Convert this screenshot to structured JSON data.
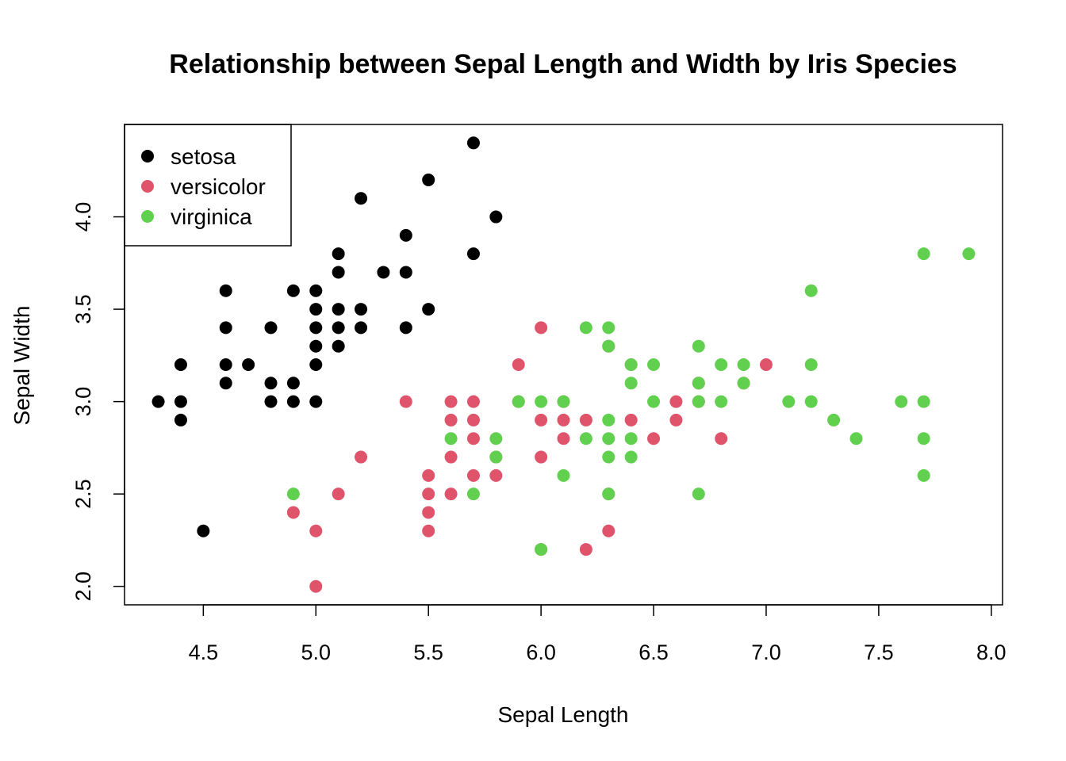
{
  "chart_data": {
    "type": "scatter",
    "title": "Relationship between Sepal Length and Width by Iris Species",
    "xlabel": "Sepal Length",
    "ylabel": "Sepal Width",
    "xlim": [
      4.15,
      8.05
    ],
    "ylim": [
      1.9,
      4.5
    ],
    "x_ticks": [
      4.5,
      5.0,
      5.5,
      6.0,
      6.5,
      7.0,
      7.5,
      8.0
    ],
    "x_tick_labels": [
      "4.5",
      "5.0",
      "5.5",
      "6.0",
      "6.5",
      "7.0",
      "7.5",
      "8.0"
    ],
    "y_ticks": [
      2.0,
      2.5,
      3.0,
      3.5,
      4.0
    ],
    "y_tick_labels": [
      "2.0",
      "2.5",
      "3.0",
      "3.5",
      "4.0"
    ],
    "grid": false,
    "legend_position": "top-left",
    "series": [
      {
        "name": "setosa",
        "color": "#000000",
        "points": [
          [
            4.3,
            3.0
          ],
          [
            4.4,
            3.2
          ],
          [
            4.4,
            3.0
          ],
          [
            4.4,
            2.9
          ],
          [
            4.5,
            2.3
          ],
          [
            4.6,
            3.6
          ],
          [
            4.6,
            3.4
          ],
          [
            4.6,
            3.2
          ],
          [
            4.6,
            3.1
          ],
          [
            4.7,
            3.2
          ],
          [
            4.8,
            3.4
          ],
          [
            4.8,
            3.1
          ],
          [
            4.8,
            3.0
          ],
          [
            4.9,
            3.6
          ],
          [
            4.9,
            3.1
          ],
          [
            4.9,
            3.0
          ],
          [
            5.0,
            3.6
          ],
          [
            5.0,
            3.5
          ],
          [
            5.0,
            3.4
          ],
          [
            5.0,
            3.3
          ],
          [
            5.0,
            3.2
          ],
          [
            5.0,
            3.0
          ],
          [
            5.1,
            3.8
          ],
          [
            5.1,
            3.7
          ],
          [
            5.1,
            3.5
          ],
          [
            5.1,
            3.4
          ],
          [
            5.1,
            3.3
          ],
          [
            5.2,
            4.1
          ],
          [
            5.2,
            3.5
          ],
          [
            5.2,
            3.4
          ],
          [
            5.3,
            3.7
          ],
          [
            5.4,
            3.9
          ],
          [
            5.4,
            3.7
          ],
          [
            5.4,
            3.4
          ],
          [
            5.5,
            4.2
          ],
          [
            5.5,
            3.5
          ],
          [
            5.7,
            4.4
          ],
          [
            5.7,
            3.8
          ],
          [
            5.8,
            4.0
          ]
        ]
      },
      {
        "name": "versicolor",
        "color": "#DF536B",
        "points": [
          [
            4.9,
            2.4
          ],
          [
            5.0,
            2.3
          ],
          [
            5.0,
            2.0
          ],
          [
            5.1,
            2.5
          ],
          [
            5.2,
            2.7
          ],
          [
            5.4,
            3.0
          ],
          [
            5.5,
            2.6
          ],
          [
            5.5,
            2.5
          ],
          [
            5.5,
            2.4
          ],
          [
            5.5,
            2.3
          ],
          [
            5.6,
            3.0
          ],
          [
            5.6,
            2.9
          ],
          [
            5.6,
            2.7
          ],
          [
            5.6,
            2.5
          ],
          [
            5.7,
            3.0
          ],
          [
            5.7,
            2.9
          ],
          [
            5.7,
            2.8
          ],
          [
            5.7,
            2.6
          ],
          [
            5.8,
            2.7
          ],
          [
            5.8,
            2.6
          ],
          [
            5.9,
            3.2
          ],
          [
            5.9,
            3.0
          ],
          [
            6.0,
            3.4
          ],
          [
            6.0,
            2.9
          ],
          [
            6.0,
            2.7
          ],
          [
            6.0,
            2.2
          ],
          [
            6.1,
            3.0
          ],
          [
            6.1,
            2.9
          ],
          [
            6.1,
            2.8
          ],
          [
            6.2,
            2.9
          ],
          [
            6.2,
            2.2
          ],
          [
            6.3,
            2.5
          ],
          [
            6.3,
            2.3
          ],
          [
            6.3,
            3.3
          ],
          [
            6.4,
            2.9
          ],
          [
            6.4,
            3.2
          ],
          [
            6.5,
            2.8
          ],
          [
            6.6,
            3.0
          ],
          [
            6.6,
            2.9
          ],
          [
            6.7,
            3.1
          ],
          [
            6.7,
            3.0
          ],
          [
            6.8,
            2.8
          ],
          [
            6.9,
            3.1
          ],
          [
            7.0,
            3.2
          ]
        ]
      },
      {
        "name": "virginica",
        "color": "#61D04F",
        "points": [
          [
            4.9,
            2.5
          ],
          [
            5.6,
            2.8
          ],
          [
            5.7,
            2.5
          ],
          [
            5.8,
            2.8
          ],
          [
            5.8,
            2.7
          ],
          [
            5.9,
            3.0
          ],
          [
            6.0,
            3.0
          ],
          [
            6.0,
            2.2
          ],
          [
            6.1,
            3.0
          ],
          [
            6.1,
            2.6
          ],
          [
            6.2,
            3.4
          ],
          [
            6.2,
            2.8
          ],
          [
            6.3,
            3.4
          ],
          [
            6.3,
            3.3
          ],
          [
            6.3,
            2.9
          ],
          [
            6.3,
            2.8
          ],
          [
            6.3,
            2.7
          ],
          [
            6.3,
            2.5
          ],
          [
            6.4,
            3.2
          ],
          [
            6.4,
            3.1
          ],
          [
            6.4,
            2.8
          ],
          [
            6.4,
            2.7
          ],
          [
            6.5,
            3.2
          ],
          [
            6.5,
            3.0
          ],
          [
            6.7,
            3.3
          ],
          [
            6.7,
            3.1
          ],
          [
            6.7,
            3.0
          ],
          [
            6.7,
            2.5
          ],
          [
            6.8,
            3.2
          ],
          [
            6.8,
            3.0
          ],
          [
            6.9,
            3.2
          ],
          [
            6.9,
            3.1
          ],
          [
            7.1,
            3.0
          ],
          [
            7.2,
            3.6
          ],
          [
            7.2,
            3.2
          ],
          [
            7.2,
            3.0
          ],
          [
            7.3,
            2.9
          ],
          [
            7.4,
            2.8
          ],
          [
            7.6,
            3.0
          ],
          [
            7.7,
            3.8
          ],
          [
            7.7,
            3.0
          ],
          [
            7.7,
            2.8
          ],
          [
            7.7,
            2.6
          ],
          [
            7.9,
            3.8
          ]
        ]
      }
    ]
  }
}
